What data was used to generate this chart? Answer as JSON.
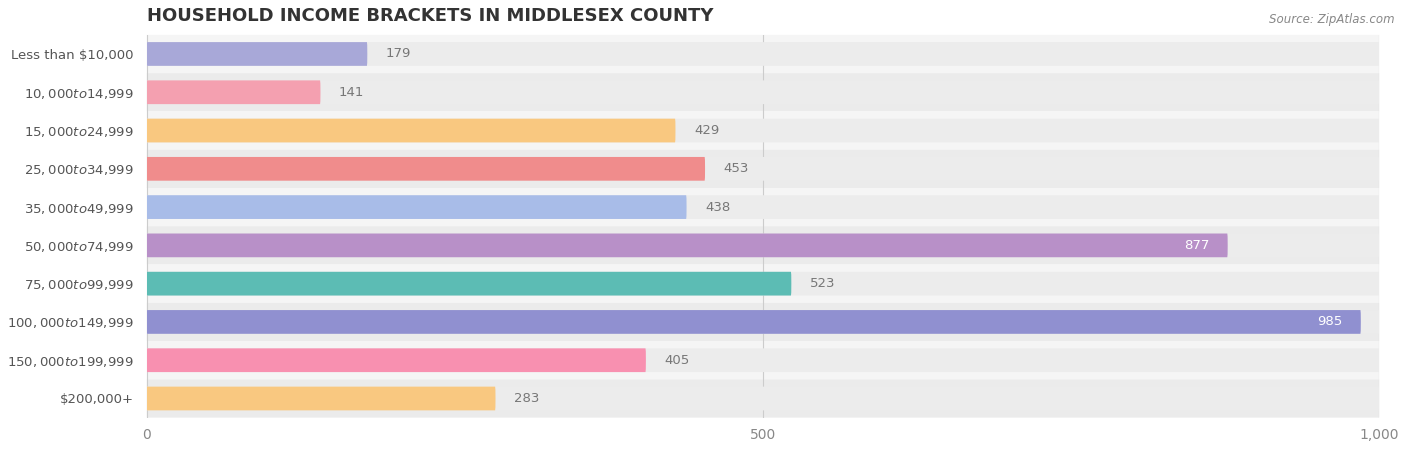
{
  "title": "HOUSEHOLD INCOME BRACKETS IN MIDDLESEX COUNTY",
  "source": "Source: ZipAtlas.com",
  "categories": [
    "Less than $10,000",
    "$10,000 to $14,999",
    "$15,000 to $24,999",
    "$25,000 to $34,999",
    "$35,000 to $49,999",
    "$50,000 to $74,999",
    "$75,000 to $99,999",
    "$100,000 to $149,999",
    "$150,000 to $199,999",
    "$200,000+"
  ],
  "values": [
    179,
    141,
    429,
    453,
    438,
    877,
    523,
    985,
    405,
    283
  ],
  "bar_colors": [
    "#a8a8d8",
    "#f4a0b0",
    "#f9c880",
    "#f08c8c",
    "#a8bce8",
    "#b890c8",
    "#5cbcb4",
    "#9090d0",
    "#f890b0",
    "#f9c880"
  ],
  "bar_bg_color": "#ececec",
  "row_bg_even": "#f5f5f5",
  "row_bg_odd": "#ebebeb",
  "label_color_inside": "#ffffff",
  "label_color_outside": "#777777",
  "xlim": [
    0,
    1000
  ],
  "xticks": [
    0,
    500,
    1000
  ],
  "title_fontsize": 13,
  "tick_fontsize": 10,
  "value_fontsize": 9.5,
  "category_fontsize": 9.5,
  "background_color": "#ffffff",
  "inside_label_threshold": 750
}
